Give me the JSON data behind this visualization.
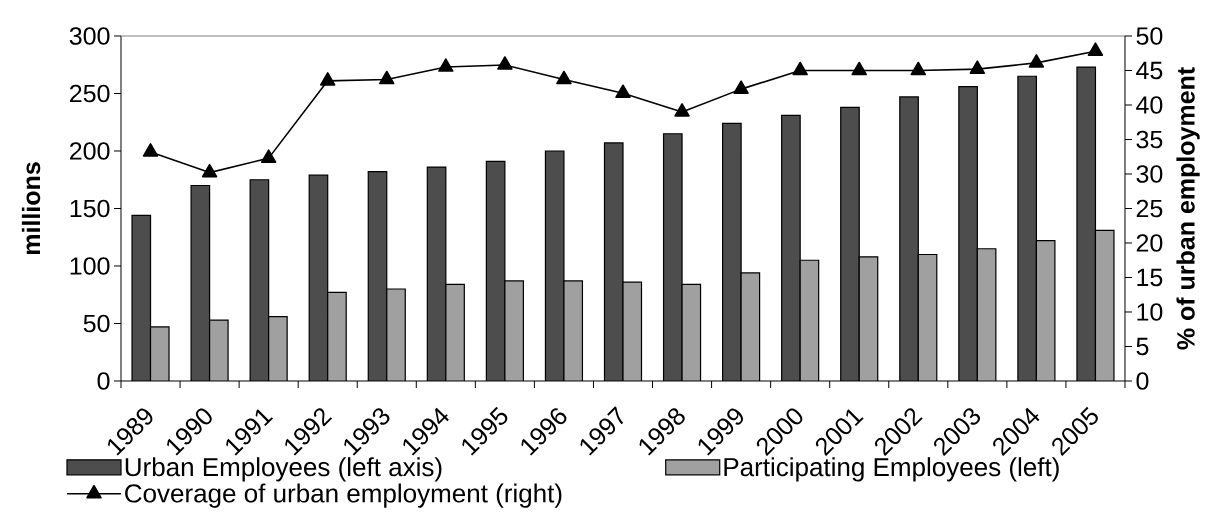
{
  "chart_data": {
    "type": "bar",
    "categories": [
      "1989",
      "1990",
      "1991",
      "1992",
      "1993",
      "1994",
      "1995",
      "1996",
      "1997",
      "1998",
      "1999",
      "2000",
      "2001",
      "2002",
      "2003",
      "2004",
      "2005"
    ],
    "ylabel": "millions",
    "y2label": "% of urban employment",
    "ylim": [
      0,
      300
    ],
    "yticks": [
      0,
      50,
      100,
      150,
      200,
      250,
      300
    ],
    "y2lim": [
      0,
      50
    ],
    "y2ticks": [
      0,
      5,
      10,
      15,
      20,
      25,
      30,
      35,
      40,
      45,
      50
    ],
    "legend": "bottom",
    "series": [
      {
        "name": "Urban Employees (left axis)",
        "color": "#4d4d4d",
        "values": [
          144,
          170,
          175,
          179,
          182,
          186,
          191,
          200,
          207,
          215,
          224,
          231,
          238,
          247,
          256,
          265,
          273
        ]
      },
      {
        "name": "Participating Employees (left)",
        "color": "#a0a0a0",
        "values": [
          47,
          53,
          56,
          77,
          80,
          84,
          87,
          87,
          86,
          84,
          94,
          105,
          108,
          110,
          115,
          122,
          131
        ]
      },
      {
        "name": "Coverage of urban employment (right)",
        "type": "line",
        "axis": "y2",
        "color": "#000000",
        "marker": "triangle",
        "values": [
          33.2,
          30.2,
          32.3,
          43.5,
          43.7,
          45.5,
          45.8,
          43.7,
          41.7,
          39.0,
          42.3,
          45.0,
          45.0,
          45.0,
          45.2,
          46.1,
          47.8
        ]
      }
    ]
  }
}
